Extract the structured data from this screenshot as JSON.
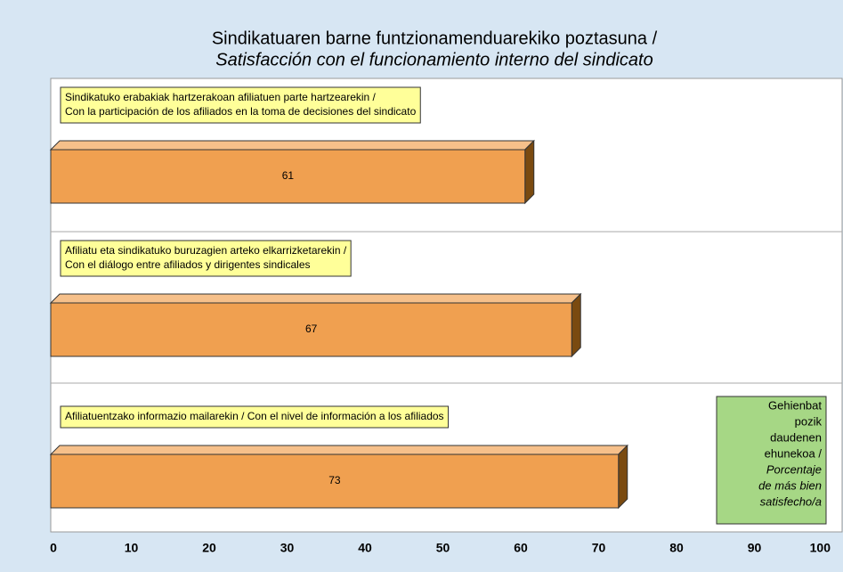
{
  "chart_data": {
    "type": "bar",
    "orientation": "horizontal",
    "title": "Sindikatuaren barne funtzionamenduarekiko poztasuna /",
    "subtitle": "Satisfacción con el funcionamiento interno del sindicato",
    "categories": [
      [
        "Sindikatuko erabakiak hartzerakoan afiliatuen parte hartzearekin /",
        "Con la participación de los afiliados en la toma de decisiones del sindicato"
      ],
      [
        "Afiliatu eta sindikatuko buruzagien arteko elkarrizketarekin /",
        "Con el diálogo entre afiliados y dirigentes sindicales"
      ],
      [
        "Afiliatuentzako informazio mailarekin / Con el nivel de información a los afiliados"
      ]
    ],
    "values": [
      61,
      67,
      73
    ],
    "color": "#f0a050",
    "xlim": [
      0,
      100
    ],
    "xticks": [
      0,
      10,
      20,
      30,
      40,
      50,
      60,
      70,
      80,
      90,
      100
    ],
    "annotation": {
      "lines_eu": [
        "Gehienbat",
        "pozik",
        "daudenen",
        "ehunekoa /"
      ],
      "lines_es": [
        "Porcentaje",
        "de más bien",
        "satisfecho/a"
      ]
    }
  }
}
